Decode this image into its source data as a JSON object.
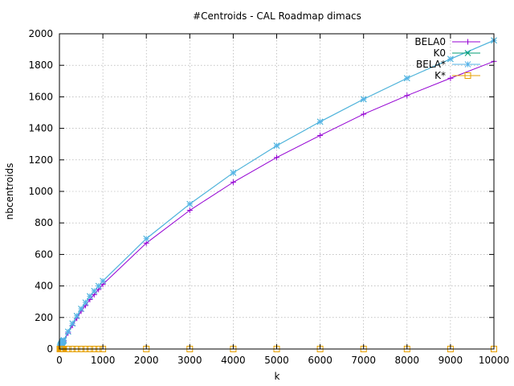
{
  "chart_data": {
    "type": "line",
    "title": "#Centroids - CAL Roadmap dimacs",
    "xlabel": "k",
    "ylabel": "nbcentroids",
    "xlim": [
      0,
      10000
    ],
    "ylim": [
      0,
      2000
    ],
    "xticks": [
      0,
      1000,
      2000,
      3000,
      4000,
      5000,
      6000,
      7000,
      8000,
      9000,
      10000
    ],
    "yticks": [
      0,
      200,
      400,
      600,
      800,
      1000,
      1200,
      1400,
      1600,
      1800,
      2000
    ],
    "grid": true,
    "legend_position": "top-right",
    "series": [
      {
        "name": "BELA0",
        "color": "#9400d3",
        "marker": "plus",
        "x": [
          10,
          20,
          30,
          40,
          50,
          60,
          70,
          80,
          90,
          100,
          200,
          300,
          400,
          500,
          600,
          700,
          800,
          900,
          1000,
          2000,
          3000,
          4000,
          5000,
          6000,
          7000,
          8000,
          9000,
          10000
        ],
        "y": [
          10,
          18,
          24,
          28,
          33,
          37,
          41,
          45,
          49,
          52,
          102,
          150,
          195,
          240,
          276,
          314,
          345,
          378,
          410,
          672,
          880,
          1058,
          1215,
          1355,
          1490,
          1608,
          1718,
          1825
        ]
      },
      {
        "name": "K0",
        "color": "#009e73",
        "marker": "cross",
        "x": [
          10,
          20,
          30,
          40,
          50,
          60,
          70,
          80,
          90,
          100,
          200,
          300,
          400,
          500,
          600,
          700,
          800,
          900,
          1000,
          2000,
          3000,
          4000,
          5000,
          6000,
          7000,
          8000,
          9000,
          10000
        ],
        "y": [
          10,
          19,
          25,
          30,
          35,
          40,
          44,
          48,
          52,
          56,
          110,
          162,
          210,
          255,
          295,
          335,
          368,
          400,
          432,
          700,
          920,
          1118,
          1290,
          1442,
          1585,
          1718,
          1840,
          1958
        ]
      },
      {
        "name": "BELA*",
        "color": "#56b4e9",
        "marker": "star",
        "x": [
          10,
          20,
          30,
          40,
          50,
          60,
          70,
          80,
          90,
          100,
          200,
          300,
          400,
          500,
          600,
          700,
          800,
          900,
          1000,
          2000,
          3000,
          4000,
          5000,
          6000,
          7000,
          8000,
          9000,
          10000
        ],
        "y": [
          10,
          19,
          25,
          30,
          35,
          40,
          44,
          48,
          52,
          56,
          110,
          162,
          210,
          255,
          295,
          335,
          368,
          400,
          432,
          700,
          920,
          1118,
          1290,
          1442,
          1585,
          1718,
          1840,
          1958
        ]
      },
      {
        "name": "K*",
        "color": "#e69f00",
        "marker": "square",
        "x": [
          10,
          20,
          30,
          40,
          50,
          60,
          70,
          80,
          90,
          100,
          200,
          300,
          400,
          500,
          600,
          700,
          800,
          900,
          1000,
          2000,
          3000,
          4000,
          5000,
          6000,
          7000,
          8000,
          9000,
          10000
        ],
        "y": [
          0,
          0,
          0,
          0,
          0,
          0,
          0,
          0,
          0,
          0,
          0,
          0,
          0,
          0,
          0,
          0,
          0,
          0,
          0,
          0,
          0,
          0,
          0,
          0,
          0,
          0,
          0,
          0
        ]
      }
    ]
  }
}
